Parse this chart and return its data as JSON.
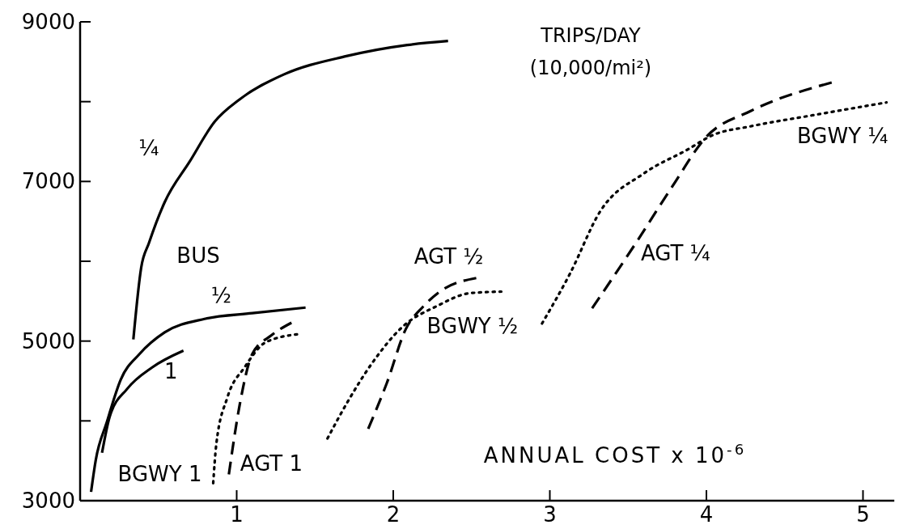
{
  "chart_data": {
    "type": "line",
    "title": "TRIPS/DAY",
    "subtitle": "(10,000/mi²)",
    "xlabel": "ANNUAL COST x 10$^{-6}$",
    "annotations": [
      "BUS"
    ],
    "xlim": [
      0,
      5.2
    ],
    "xticks": [
      1,
      2,
      3,
      4,
      5
    ],
    "ylim": [
      3000,
      9000
    ],
    "yticks": [
      3000,
      {
        "value": 4000,
        "label": null
      },
      5000,
      {
        "value": 6000,
        "label": null
      },
      7000,
      {
        "value": 8000,
        "label": null
      },
      9000
    ],
    "series": [
      {
        "name": "¼",
        "color": "#000000",
        "line_style": "solid",
        "x": [
          0.34,
          0.39,
          0.44,
          0.54,
          0.7,
          0.86,
          1.02,
          1.3,
          1.7,
          2.09,
          2.35
        ],
        "values": [
          5020,
          5920,
          6230,
          6740,
          7250,
          7750,
          8030,
          8340,
          8570,
          8710,
          8760
        ]
      },
      {
        "name": "½",
        "color": "#000000",
        "line_style": "solid",
        "x": [
          0.07,
          0.1,
          0.17,
          0.26,
          0.38,
          0.54,
          0.8,
          1.1,
          1.44
        ],
        "values": [
          3110,
          3510,
          3980,
          4520,
          4840,
          5110,
          5280,
          5350,
          5420
        ]
      },
      {
        "name": "1",
        "color": "#000000",
        "line_style": "solid",
        "x": [
          0.14,
          0.19,
          0.3,
          0.46,
          0.66
        ],
        "values": [
          3600,
          4060,
          4400,
          4670,
          4880
        ]
      },
      {
        "name": "BGWY 1",
        "color": "#000000",
        "line_style": "dotted",
        "x": [
          0.85,
          0.87,
          0.94,
          1.05,
          1.19,
          1.41
        ],
        "values": [
          3220,
          3710,
          4290,
          4670,
          4990,
          5090
        ]
      },
      {
        "name": "AGT 1",
        "color": "#000000",
        "line_style": "dashed",
        "x": [
          0.95,
          1.02,
          1.1,
          1.22,
          1.35
        ],
        "values": [
          3330,
          4210,
          4840,
          5070,
          5230
        ]
      },
      {
        "name": "BGWY ½",
        "color": "#000000",
        "line_style": "dotted",
        "x": [
          1.58,
          1.7,
          1.86,
          2.06,
          2.28,
          2.49,
          2.69
        ],
        "values": [
          3780,
          4210,
          4710,
          5180,
          5440,
          5600,
          5620
        ]
      },
      {
        "name": "AGT ½",
        "color": "#000000",
        "line_style": "dashed",
        "x": [
          1.84,
          1.96,
          2.08,
          2.19,
          2.29,
          2.53
        ],
        "values": [
          3900,
          4480,
          5150,
          5430,
          5610,
          5790
        ]
      },
      {
        "name": "BGWY ¼",
        "color": "#000000",
        "line_style": "dotted",
        "x": [
          2.95,
          3.13,
          3.32,
          3.6,
          3.88,
          4.04,
          4.28,
          4.68,
          5.15
        ],
        "values": [
          5220,
          5850,
          6620,
          7100,
          7400,
          7580,
          7690,
          7830,
          7990
        ]
      },
      {
        "name": "AGT ¼",
        "color": "#000000",
        "line_style": "dashed",
        "x": [
          3.27,
          3.55,
          3.78,
          4.0,
          4.28,
          4.8
        ],
        "values": [
          5410,
          6230,
          6930,
          7560,
          7880,
          8240
        ]
      }
    ]
  }
}
